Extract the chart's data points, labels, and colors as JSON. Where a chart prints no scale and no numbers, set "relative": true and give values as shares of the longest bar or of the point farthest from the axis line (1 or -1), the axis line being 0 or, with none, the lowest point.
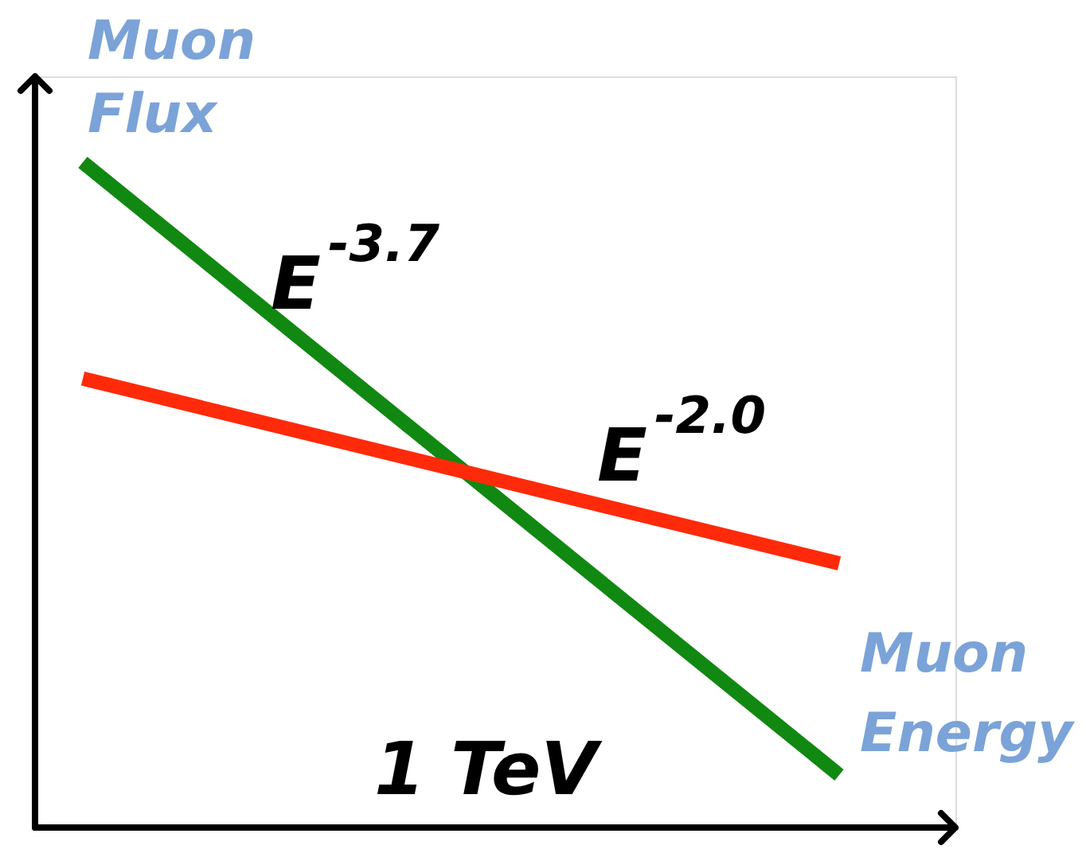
{
  "chart_data": {
    "type": "line",
    "relative": true,
    "xlabel": "Muon Energy",
    "ylabel": "Muon Flux",
    "categories": [
      null,
      null
    ],
    "series": [
      {
        "color": "#118811",
        "values": [
          1,
          0.079
        ]
      },
      {
        "color": "#ff2a0a",
        "values": [
          0.675,
          0.397
        ]
      }
    ],
    "annotations": [
      "E$^{-3.7}$",
      "E$^{-2.0}$",
      "1 TeV"
    ],
    "legend": false,
    "marker": "none",
    "line_style": "solid"
  }
}
